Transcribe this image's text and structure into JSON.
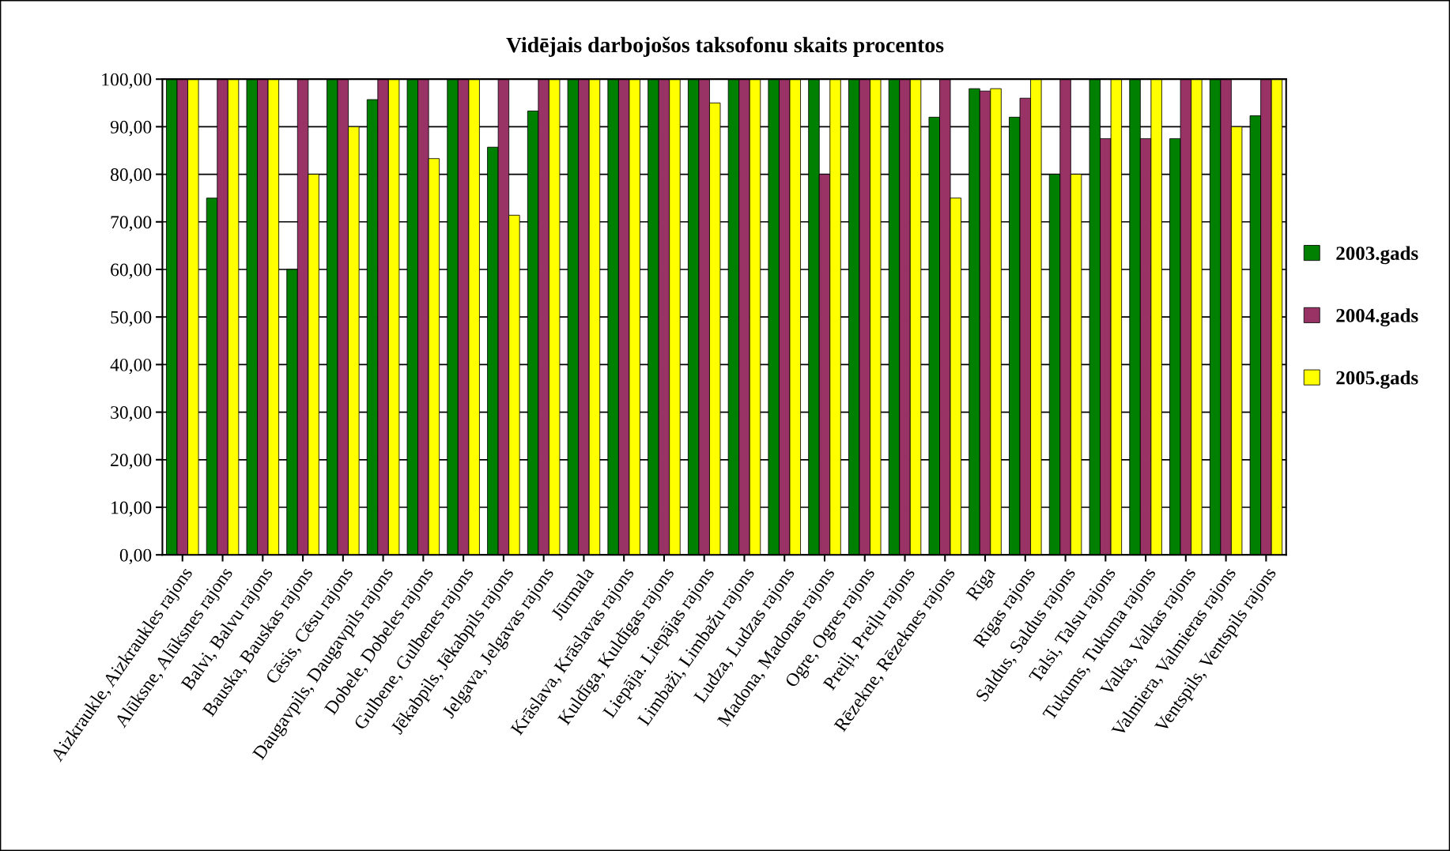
{
  "chart_data": {
    "type": "bar",
    "title": "Vidējais darbojošos taksofonu skaits procentos",
    "categories": [
      "Aizkraukle, Aizkraukles rajons",
      "Alūksne, Alūksnes rajons",
      "Balvi, Balvu rajons",
      "Bauska, Bauskas rajons",
      "Cēsis, Cēsu rajons",
      "Daugavpils, Daugavpils rajons",
      "Dobele, Dobeles rajons",
      "Gulbene, Gulbenes rajons",
      "Jēkabpils, Jēkabpils rajons",
      "Jelgava, Jelgavas rajons",
      "Jūrmala",
      "Krāslava, Krāslavas rajons",
      "Kuldīga, Kuldīgas rajons",
      "Liepāja. Liepājas rajons",
      "Limbaži, Limbažu rajons",
      "Ludza, Ludzas rajons",
      "Madona, Madonas rajons",
      "Ogre, Ogres rajons",
      "Preiļi, Preiļu rajons",
      "Rēzekne, Rēzeknes rajons",
      "Rīga",
      "Rīgas rajons",
      "Saldus, Saldus rajons",
      "Talsi, Talsu rajons",
      "Tukums, Tukuma rajons",
      "Valka, Valkas rajons",
      "Valmiera, Valmieras rajons",
      "Ventspils, Ventspils rajons"
    ],
    "series": [
      {
        "name": "2003.gads",
        "color": "#008000",
        "values": [
          100,
          75,
          100,
          60,
          100,
          95.7,
          100,
          100,
          85.7,
          93.3,
          100,
          100,
          100,
          100,
          100,
          100,
          100,
          100,
          100,
          92,
          98,
          92,
          80,
          100,
          100,
          87.5,
          100,
          92.3
        ]
      },
      {
        "name": "2004.gads",
        "color": "#993366",
        "values": [
          100,
          100,
          100,
          100,
          100,
          100,
          100,
          100,
          100,
          100,
          100,
          100,
          100,
          100,
          100,
          100,
          80,
          100,
          100,
          100,
          97.5,
          96,
          100,
          87.5,
          87.5,
          100,
          100,
          100
        ]
      },
      {
        "name": "2005.gads",
        "color": "#ffff00",
        "values": [
          100,
          100,
          100,
          80,
          90,
          100,
          83.3,
          100,
          71.4,
          100,
          100,
          100,
          100,
          95,
          100,
          100,
          100,
          100,
          100,
          75,
          98,
          100,
          80,
          100,
          100,
          100,
          90,
          100
        ]
      }
    ],
    "ylim": [
      0,
      100
    ],
    "yticks": [
      {
        "value": 0,
        "label": "0,00"
      },
      {
        "value": 10,
        "label": "10,00"
      },
      {
        "value": 20,
        "label": "20,00"
      },
      {
        "value": 30,
        "label": "30,00"
      },
      {
        "value": 40,
        "label": "40,00"
      },
      {
        "value": 50,
        "label": "50,00"
      },
      {
        "value": 60,
        "label": "60,00"
      },
      {
        "value": 70,
        "label": "70,00"
      },
      {
        "value": 80,
        "label": "80,00"
      },
      {
        "value": 90,
        "label": "90,00"
      },
      {
        "value": 100,
        "label": "100,00"
      }
    ],
    "grid": "y",
    "legend": "right"
  }
}
